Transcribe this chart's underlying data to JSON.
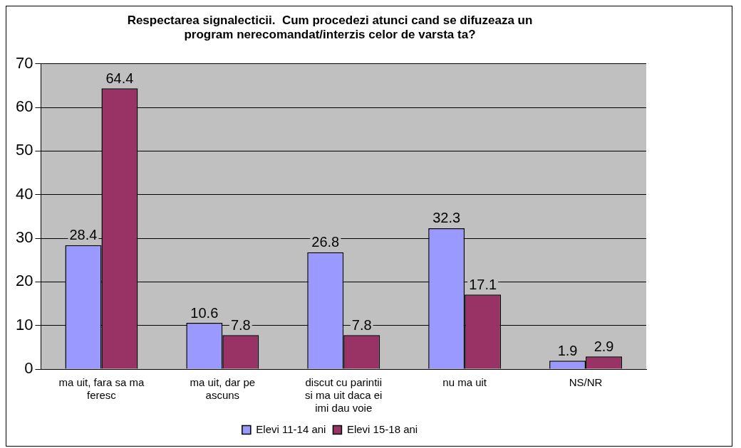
{
  "chart_data": {
    "type": "bar",
    "title": "Respectarea signalecticii.  Cum procedezi atunci cand se difuzeaza un program nerecomandat/interzis celor de varsta ta?",
    "categories": [
      "ma uit, fara sa ma feresc",
      "ma uit, dar pe ascuns",
      "discut cu parintii si ma uit daca ei imi dau voie",
      "nu ma uit",
      "NS/NR"
    ],
    "series": [
      {
        "name": "Elevi 11-14 ani",
        "color": "#9999ff",
        "values": [
          28.4,
          10.6,
          26.8,
          32.3,
          1.9
        ]
      },
      {
        "name": "Elevi 15-18 ani",
        "color": "#993366",
        "values": [
          64.4,
          7.8,
          7.8,
          17.1,
          2.9
        ]
      }
    ],
    "ylim": [
      0,
      70
    ],
    "yticks": [
      0,
      10,
      20,
      30,
      40,
      50,
      60,
      70
    ],
    "grid": "y",
    "legend": "bottom",
    "data_labels": true
  }
}
